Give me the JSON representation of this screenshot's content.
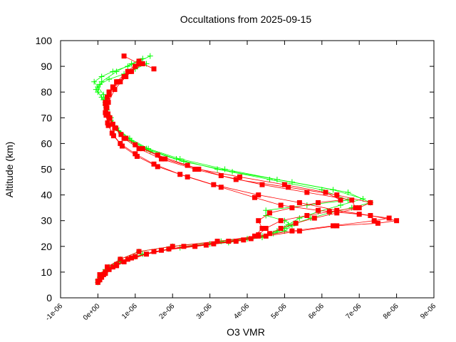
{
  "chart_data": {
    "type": "scatter",
    "title": "Occultations from 2025-09-15",
    "xlabel": "O3 VMR",
    "ylabel": "Altitude (km)",
    "xlim": [
      -1e-06,
      9e-06
    ],
    "ylim": [
      0,
      100
    ],
    "x_ticks": [
      "-1e-06",
      "0e+00",
      "1e-06",
      "2e-06",
      "3e-06",
      "4e-06",
      "5e-06",
      "6e-06",
      "7e-06",
      "8e-06",
      "9e-06"
    ],
    "y_ticks": [
      "0",
      "10",
      "20",
      "30",
      "40",
      "50",
      "60",
      "70",
      "80",
      "90",
      "100"
    ],
    "grid": false,
    "legend": "none",
    "series": [
      {
        "color": "#00ff00",
        "marker": "plus",
        "profiles": [
          {
            "x": [
              0.0,
              1e-07,
              3e-07,
              6e-07,
              1.1e-06,
              2e-06,
              3.3e-06,
              4.4e-06,
              5e-06,
              5.2e-06,
              5e-06,
              4.5e-06,
              4.5e-06,
              5.6e-06,
              6.7e-06,
              6e-06,
              4.6e-06,
              3.2e-06,
              2.1e-06,
              1.3e-06,
              8e-07,
              5e-07,
              3.5e-07,
              2.5e-07,
              2e-07,
              1.5e-07,
              0.0,
              -1e-07,
              1e-07,
              4e-07,
              8e-07,
              1.1e-06,
              1.4e-06
            ],
            "y": [
              6,
              9,
              12,
              15,
              18,
              20,
              22,
              24,
              26,
              28,
              30,
              32,
              34,
              36,
              38,
              42,
              46,
              50,
              54,
              58,
              62,
              66,
              70,
              73,
              76,
              79,
              82,
              84,
              86,
              88,
              90,
              92,
              94
            ]
          },
          {
            "x": [
              0.0,
              2e-07,
              5e-07,
              1e-06,
              1.9e-06,
              3e-06,
              4e-06,
              4.7e-06,
              5e-06,
              5.3e-06,
              5.7e-06,
              6.2e-06,
              6.8e-06,
              7.3e-06,
              6.7e-06,
              5.2e-06,
              3.6e-06,
              2.3e-06,
              1.4e-06,
              9e-07,
              5.5e-07,
              3.5e-07,
              2.5e-07,
              2e-07,
              1e-07,
              -5e-08,
              5e-08,
              3e-07,
              7e-07,
              1e-06,
              1.3e-06
            ],
            "y": [
              7,
              10,
              13,
              16,
              19,
              21,
              23,
              25,
              27,
              29,
              31,
              33,
              35,
              37,
              41,
              45,
              49,
              53,
              57,
              61,
              65,
              69,
              72,
              75,
              78,
              81,
              83,
              85,
              87,
              89,
              91
            ]
          },
          {
            "x": [
              5e-08,
              2e-07,
              6e-07,
              1.2e-06,
              2.2e-06,
              3.5e-06,
              4.4e-06,
              4.8e-06,
              5.1e-06,
              5.4e-06,
              5.9e-06,
              6.5e-06,
              7.1e-06,
              6.3e-06,
              4.8e-06,
              3.4e-06,
              2.2e-06,
              1.35e-06,
              8.5e-07,
              5e-07,
              3.3e-07,
              2.2e-07,
              1.5e-07,
              0.0,
              1e-07,
              5e-07,
              9e-07,
              1.2e-06
            ],
            "y": [
              8,
              11,
              14,
              17,
              19.5,
              21.5,
              23.5,
              26,
              28.5,
              31,
              33.5,
              36,
              38.5,
              42,
              46,
              50,
              54,
              58,
              62,
              66,
              70,
              74,
              77,
              80,
              84,
              88,
              91,
              93
            ]
          }
        ]
      },
      {
        "color": "#ff0000",
        "marker": "square",
        "profiles": [
          {
            "x": [
              0.0,
              1.5e-07,
              4e-07,
              8e-07,
              1.5e-06,
              2.6e-06,
              3.7e-06,
              4.5e-06,
              5.4e-06,
              6.4e-06,
              7.5e-06,
              8e-06,
              7.3e-06,
              6.4e-06,
              5.4e-06,
              4.3e-06,
              3.1e-06,
              2.2e-06,
              1.5e-06,
              1e-06,
              6e-07,
              3.8e-07,
              2.6e-07,
              2e-07,
              2e-07,
              3e-07,
              6e-07,
              9e-07,
              1.2e-06,
              1.5e-06
            ],
            "y": [
              6,
              9,
              12,
              15,
              18,
              20,
              22,
              24,
              26,
              28,
              29,
              30,
              32,
              34,
              37,
              40,
              44,
              48,
              52,
              56,
              60,
              64,
              68,
              72,
              76,
              80,
              84,
              88,
              91,
              89
            ]
          },
          {
            "x": [
              5e-08,
              2e-07,
              5e-07,
              1e-06,
              1.9e-06,
              3.1e-06,
              4.1e-06,
              4.6e-06,
              4.9e-06,
              5.3e-06,
              5.8e-06,
              6.4e-06,
              7e-06,
              7.3e-06,
              6.4e-06,
              5.1e-06,
              3.7e-06,
              2.6e-06,
              1.7e-06,
              1.1e-06,
              7e-07,
              4.5e-07,
              3e-07,
              2.2e-07,
              2.5e-07,
              4e-07,
              7e-07,
              1e-06
            ],
            "y": [
              7,
              10,
              13,
              16,
              19,
              21,
              23,
              25,
              27,
              29,
              31,
              33,
              35,
              37,
              40,
              43,
              46,
              50,
              54,
              58,
              62,
              66,
              70,
              74,
              78,
              82,
              86,
              90
            ]
          },
          {
            "x": [
              1e-07,
              3e-07,
              7e-07,
              1.3e-06,
              2.3e-06,
              3.5e-06,
              4.2e-06,
              4.4e-06,
              4.3e-06,
              4.6e-06,
              5.2e-06,
              5.9e-06,
              6.5e-06,
              6.1e-06,
              5e-06,
              3.8e-06,
              2.7e-06,
              1.8e-06,
              1.2e-06,
              7.5e-07,
              4.8e-07,
              3.2e-07,
              2.4e-07,
              3e-07,
              5e-07,
              8e-07,
              1.1e-06
            ],
            "y": [
              8,
              11,
              14,
              17,
              20,
              22,
              24,
              27,
              30,
              33,
              35,
              37,
              38,
              41,
              44,
              47,
              50,
              54,
              58,
              62,
              66,
              70,
              74,
              79,
              84,
              88,
              92
            ]
          },
          {
            "x": [
              5e-08,
              2.5e-07,
              6e-07,
              1.1e-06,
              2e-06,
              3.2e-06,
              4.3e-06,
              5.2e-06,
              6.3e-06,
              7.4e-06,
              7.8e-06,
              7e-06,
              5.9e-06,
              4.9e-06,
              4.2e-06,
              3.3e-06,
              2.4e-06,
              1.6e-06,
              1.05e-06,
              6.5e-07,
              4.2e-07,
              2.8e-07,
              2.2e-07,
              2.8e-07,
              4.5e-07,
              7.5e-07,
              1e-06
            ],
            "y": [
              9,
              12,
              15,
              18,
              20,
              22,
              24,
              26,
              28,
              30,
              31,
              32.5,
              34,
              36,
              39,
              43,
              47,
              51,
              55,
              59,
              63,
              67,
              71,
              76,
              81,
              86,
              90
            ]
          },
          {
            "x": [
              0.0,
              2e-07,
              5e-07,
              9e-07,
              1.7e-06,
              2.9e-06,
              3.9e-06,
              4.3e-06,
              4.5e-06,
              4.9e-06,
              5.6e-06,
              6.2e-06,
              6.9e-06,
              6.8e-06,
              5.6e-06,
              4.4e-06,
              3.3e-06,
              2.4e-06,
              1.6e-06,
              1e-06,
              6.2e-07,
              4e-07,
              2.7e-07,
              2e-07,
              3e-07,
              5.5e-07,
              8.5e-07,
              1.1e-06,
              7e-07
            ],
            "y": [
              6.5,
              9.5,
              12.5,
              15.5,
              18.5,
              20.5,
              22.5,
              24.5,
              27,
              30,
              32,
              33.5,
              35,
              38,
              41,
              44,
              47.5,
              51.5,
              55.5,
              59.5,
              63.5,
              67.5,
              71.5,
              75.5,
              80,
              84,
              88,
              91,
              94
            ]
          }
        ]
      }
    ]
  }
}
